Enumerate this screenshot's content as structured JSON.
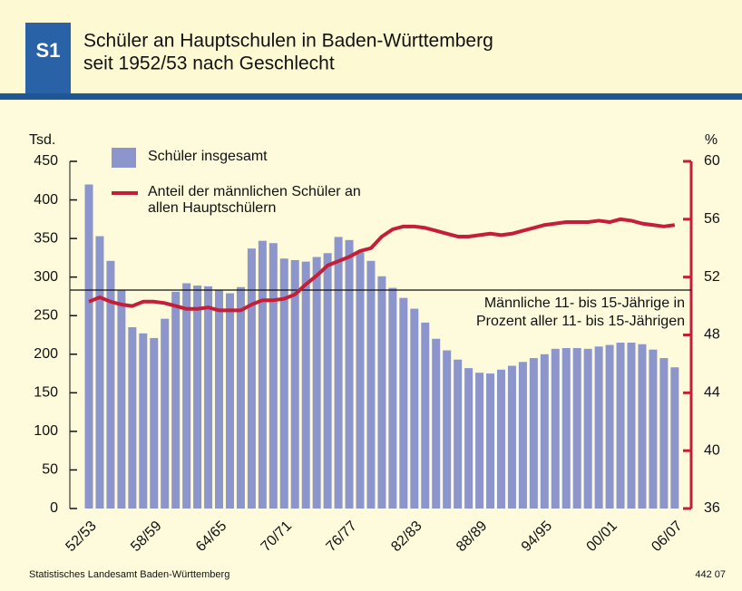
{
  "chart_data": {
    "type": "bar_line",
    "badge": "S1",
    "title_lines": [
      "Schüler an Hauptschulen in Baden-Württemberg",
      "seit 1952/53 nach Geschlecht"
    ],
    "y_label": "Tsd.",
    "y2_label": "%",
    "categories": [
      "52/53",
      null,
      null,
      null,
      null,
      null,
      "58/59",
      null,
      null,
      null,
      null,
      null,
      "64/65",
      null,
      null,
      null,
      null,
      null,
      "70/71",
      null,
      null,
      null,
      null,
      null,
      "76/77",
      null,
      null,
      null,
      null,
      null,
      "82/83",
      null,
      null,
      null,
      null,
      null,
      "88/89",
      null,
      null,
      null,
      null,
      null,
      "94/95",
      null,
      null,
      null,
      null,
      null,
      "00/01",
      null,
      null,
      null,
      null,
      null,
      "06/07"
    ],
    "series": [
      {
        "name": "Schüler insgesamt",
        "type": "bar",
        "color": "#8d96cc",
        "values": [
          420,
          353,
          321,
          283,
          235,
          227,
          221,
          246,
          281,
          292,
          289,
          288,
          283,
          279,
          287,
          337,
          347,
          344,
          324,
          322,
          320,
          326,
          331,
          352,
          348,
          332,
          321,
          301,
          286,
          273,
          259,
          241,
          220,
          205,
          193,
          182,
          176,
          175,
          180,
          185,
          190,
          195,
          200,
          207,
          208,
          208,
          207,
          210,
          212,
          215,
          215,
          213,
          206,
          195,
          183
        ]
      },
      {
        "name": "Anteil der männlichen Schüler an allen Hauptschülern",
        "type": "line",
        "axis": "y2",
        "color": "#c41e3a",
        "values": [
          50.3,
          50.6,
          50.3,
          50.1,
          50.0,
          50.3,
          50.3,
          50.2,
          50.0,
          49.8,
          49.8,
          49.9,
          49.7,
          49.7,
          49.7,
          50.1,
          50.4,
          50.4,
          50.5,
          50.8,
          51.5,
          52.1,
          52.8,
          53.1,
          53.4,
          53.8,
          54.0,
          54.8,
          55.3,
          55.5,
          55.5,
          55.4,
          55.2,
          55.0,
          54.8,
          54.8,
          54.9,
          55.0,
          54.9,
          55.0,
          55.2,
          55.4,
          55.6,
          55.7,
          55.8,
          55.8,
          55.8,
          55.9,
          55.8,
          56.0,
          55.9,
          55.7,
          55.6,
          55.5,
          55.6
        ]
      }
    ],
    "reference_line": {
      "value": 51.1,
      "axis": "y2",
      "label_lines": [
        "Männliche 11- bis 15-Jährige in",
        "Prozent aller 11- bis 15-Jährigen"
      ]
    },
    "ylim": [
      0,
      450
    ],
    "yticks": [
      0,
      50,
      100,
      150,
      200,
      250,
      300,
      350,
      400,
      450
    ],
    "y2lim": [
      36,
      60
    ],
    "y2ticks": [
      36,
      40,
      44,
      48,
      52,
      56,
      60
    ],
    "y2_color": "#c41e3a",
    "source": "Statistisches Landesamt Baden-Württemberg",
    "code": "442 07"
  }
}
